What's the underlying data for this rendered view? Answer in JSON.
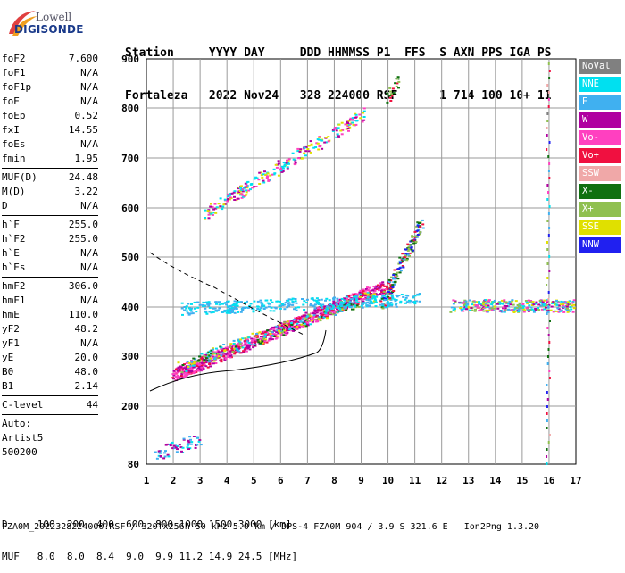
{
  "logo": {
    "brand_top": "Lowell",
    "brand_bottom": "DIGISONDE"
  },
  "header": {
    "labels": [
      "Station",
      "YYYY",
      "DAY",
      "DDD",
      "HHMMSS",
      "P1",
      "FFS",
      "S",
      "AXN",
      "PPS",
      "IGA",
      "PS"
    ],
    "values": [
      "Fortaleza",
      "2022",
      "Nov24",
      "328",
      "224000",
      "RSF",
      "",
      "1",
      "714",
      "100",
      "10+",
      "11"
    ]
  },
  "params": [
    {
      "name": "foF2",
      "value": "7.600"
    },
    {
      "name": "foF1",
      "value": "N/A"
    },
    {
      "name": "foF1p",
      "value": "N/A"
    },
    {
      "name": "foE",
      "value": "N/A"
    },
    {
      "name": "foEp",
      "value": "0.52"
    },
    {
      "name": "fxI",
      "value": "14.55"
    },
    {
      "name": "foEs",
      "value": "N/A"
    },
    {
      "name": "fmin",
      "value": "1.95"
    },
    {
      "sep": true
    },
    {
      "name": "MUF(D)",
      "value": "24.48"
    },
    {
      "name": "M(D)",
      "value": "3.22"
    },
    {
      "name": "D",
      "value": "N/A"
    },
    {
      "sep": true
    },
    {
      "name": "h`F",
      "value": "255.0"
    },
    {
      "name": "h`F2",
      "value": "255.0"
    },
    {
      "name": "h`E",
      "value": "N/A"
    },
    {
      "name": "h`Es",
      "value": "N/A"
    },
    {
      "sep": true
    },
    {
      "name": "hmF2",
      "value": "306.0"
    },
    {
      "name": "hmF1",
      "value": "N/A"
    },
    {
      "name": "hmE",
      "value": "110.0"
    },
    {
      "name": "yF2",
      "value": "48.2"
    },
    {
      "name": "yF1",
      "value": "N/A"
    },
    {
      "name": "yE",
      "value": "20.0"
    },
    {
      "name": "B0",
      "value": "48.0"
    },
    {
      "name": "B1",
      "value": "2.14"
    },
    {
      "sep": true
    },
    {
      "name": "C-level",
      "value": "44"
    },
    {
      "sep": true
    }
  ],
  "auto": {
    "line1": "Auto:",
    "line2": "Artist5",
    "line3": "500200"
  },
  "legend": [
    {
      "label": "NoVal",
      "color": "#808080"
    },
    {
      "label": "NNE",
      "color": "#00e0f0"
    },
    {
      "label": "E",
      "color": "#40b0f0"
    },
    {
      "label": "W",
      "color": "#b000a0"
    },
    {
      "label": "Vo-",
      "color": "#ff40c0"
    },
    {
      "label": "Vo+",
      "color": "#f01040"
    },
    {
      "label": "SSW",
      "color": "#f0a8a8"
    },
    {
      "label": "X-",
      "color": "#107010"
    },
    {
      "label": "X+",
      "color": "#90c050"
    },
    {
      "label": "SSE",
      "color": "#e0e000"
    },
    {
      "label": "NNW",
      "color": "#2020f0"
    }
  ],
  "axes": {
    "x_ticks": [
      "1",
      "2",
      "3",
      "4",
      "5",
      "6",
      "7",
      "8",
      "9",
      "10",
      "11",
      "12",
      "13",
      "14",
      "15",
      "16",
      "17"
    ],
    "y_ticks": [
      "900",
      "800",
      "700",
      "600",
      "500",
      "400",
      "300",
      "200",
      "80"
    ]
  },
  "bottom": {
    "d_row": "D     100  200  400  600  800 1000 1500 3000 [km]",
    "muf_row": "MUF   8.0  8.0  8.4  9.0  9.9 11.2 14.9 24.5 [MHz]",
    "footer": "FZA0M_2022328224000.RSF / 320fx256h 50 kHz 5.0 km / DPS-4 FZA0M 904 / 3.9 S 321.6 E   Ion2Png 1.3.20"
  }
}
